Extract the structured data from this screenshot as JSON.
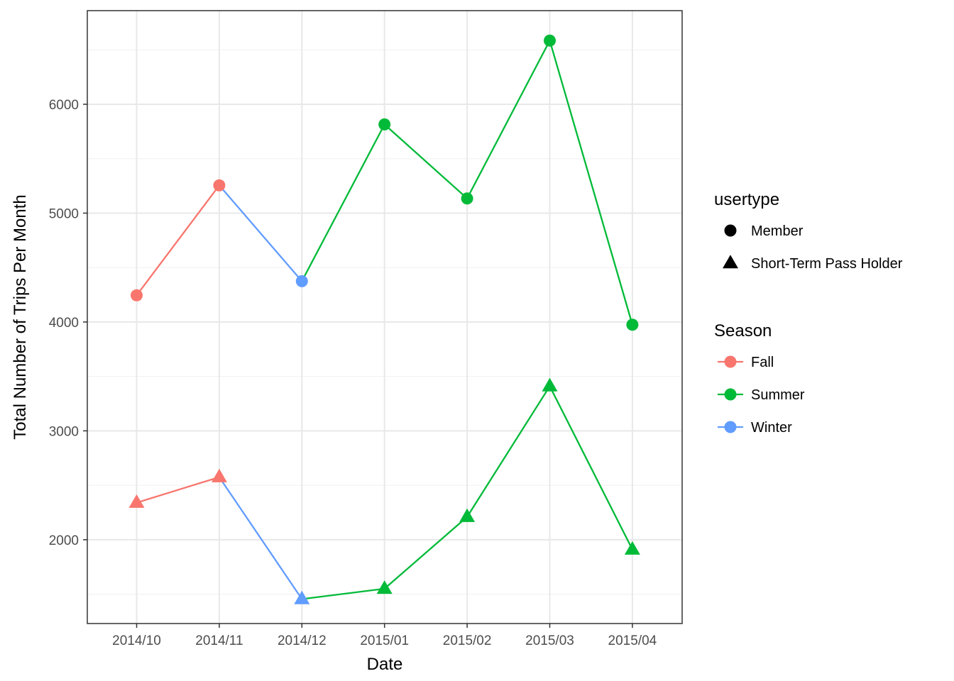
{
  "chart_data": {
    "type": "line",
    "xlabel": "Date",
    "ylabel": "Total Number of Trips Per Month",
    "categories": [
      "2014/10",
      "2014/11",
      "2014/12",
      "2015/01",
      "2015/02",
      "2015/03",
      "2015/04"
    ],
    "ylim": [
      1230,
      6860
    ],
    "yticks": [
      2000,
      3000,
      4000,
      5000,
      6000
    ],
    "grid": true,
    "season_colors": {
      "Fall": "#F8766D",
      "Summer": "#00BA38",
      "Winter": "#619CFF"
    },
    "series": [
      {
        "usertype": "Member",
        "shape": "circle",
        "points": [
          {
            "x": "2014/10",
            "y": 4245,
            "season": "Fall"
          },
          {
            "x": "2014/11",
            "y": 5255,
            "season": "Fall"
          },
          {
            "x": "2014/12",
            "y": 4375,
            "season": "Winter"
          },
          {
            "x": "2015/01",
            "y": 5815,
            "season": "Summer"
          },
          {
            "x": "2015/02",
            "y": 5135,
            "season": "Summer"
          },
          {
            "x": "2015/03",
            "y": 6585,
            "season": "Summer"
          },
          {
            "x": "2015/04",
            "y": 3975,
            "season": "Summer"
          }
        ]
      },
      {
        "usertype": "Short-Term Pass Holder",
        "shape": "triangle",
        "points": [
          {
            "x": "2014/10",
            "y": 2340,
            "season": "Fall"
          },
          {
            "x": "2014/11",
            "y": 2575,
            "season": "Fall"
          },
          {
            "x": "2014/12",
            "y": 1455,
            "season": "Winter"
          },
          {
            "x": "2015/01",
            "y": 1550,
            "season": "Summer"
          },
          {
            "x": "2015/02",
            "y": 2210,
            "season": "Summer"
          },
          {
            "x": "2015/03",
            "y": 3410,
            "season": "Summer"
          },
          {
            "x": "2015/04",
            "y": 1910,
            "season": "Summer"
          }
        ]
      }
    ],
    "legend": {
      "position": "right",
      "shape_title": "usertype",
      "shape_items": [
        {
          "label": "Member",
          "shape": "circle"
        },
        {
          "label": "Short-Term Pass Holder",
          "shape": "triangle"
        }
      ],
      "color_title": "Season",
      "color_items": [
        {
          "label": "Fall",
          "color": "#F8766D"
        },
        {
          "label": "Summer",
          "color": "#00BA38"
        },
        {
          "label": "Winter",
          "color": "#619CFF"
        }
      ]
    }
  }
}
